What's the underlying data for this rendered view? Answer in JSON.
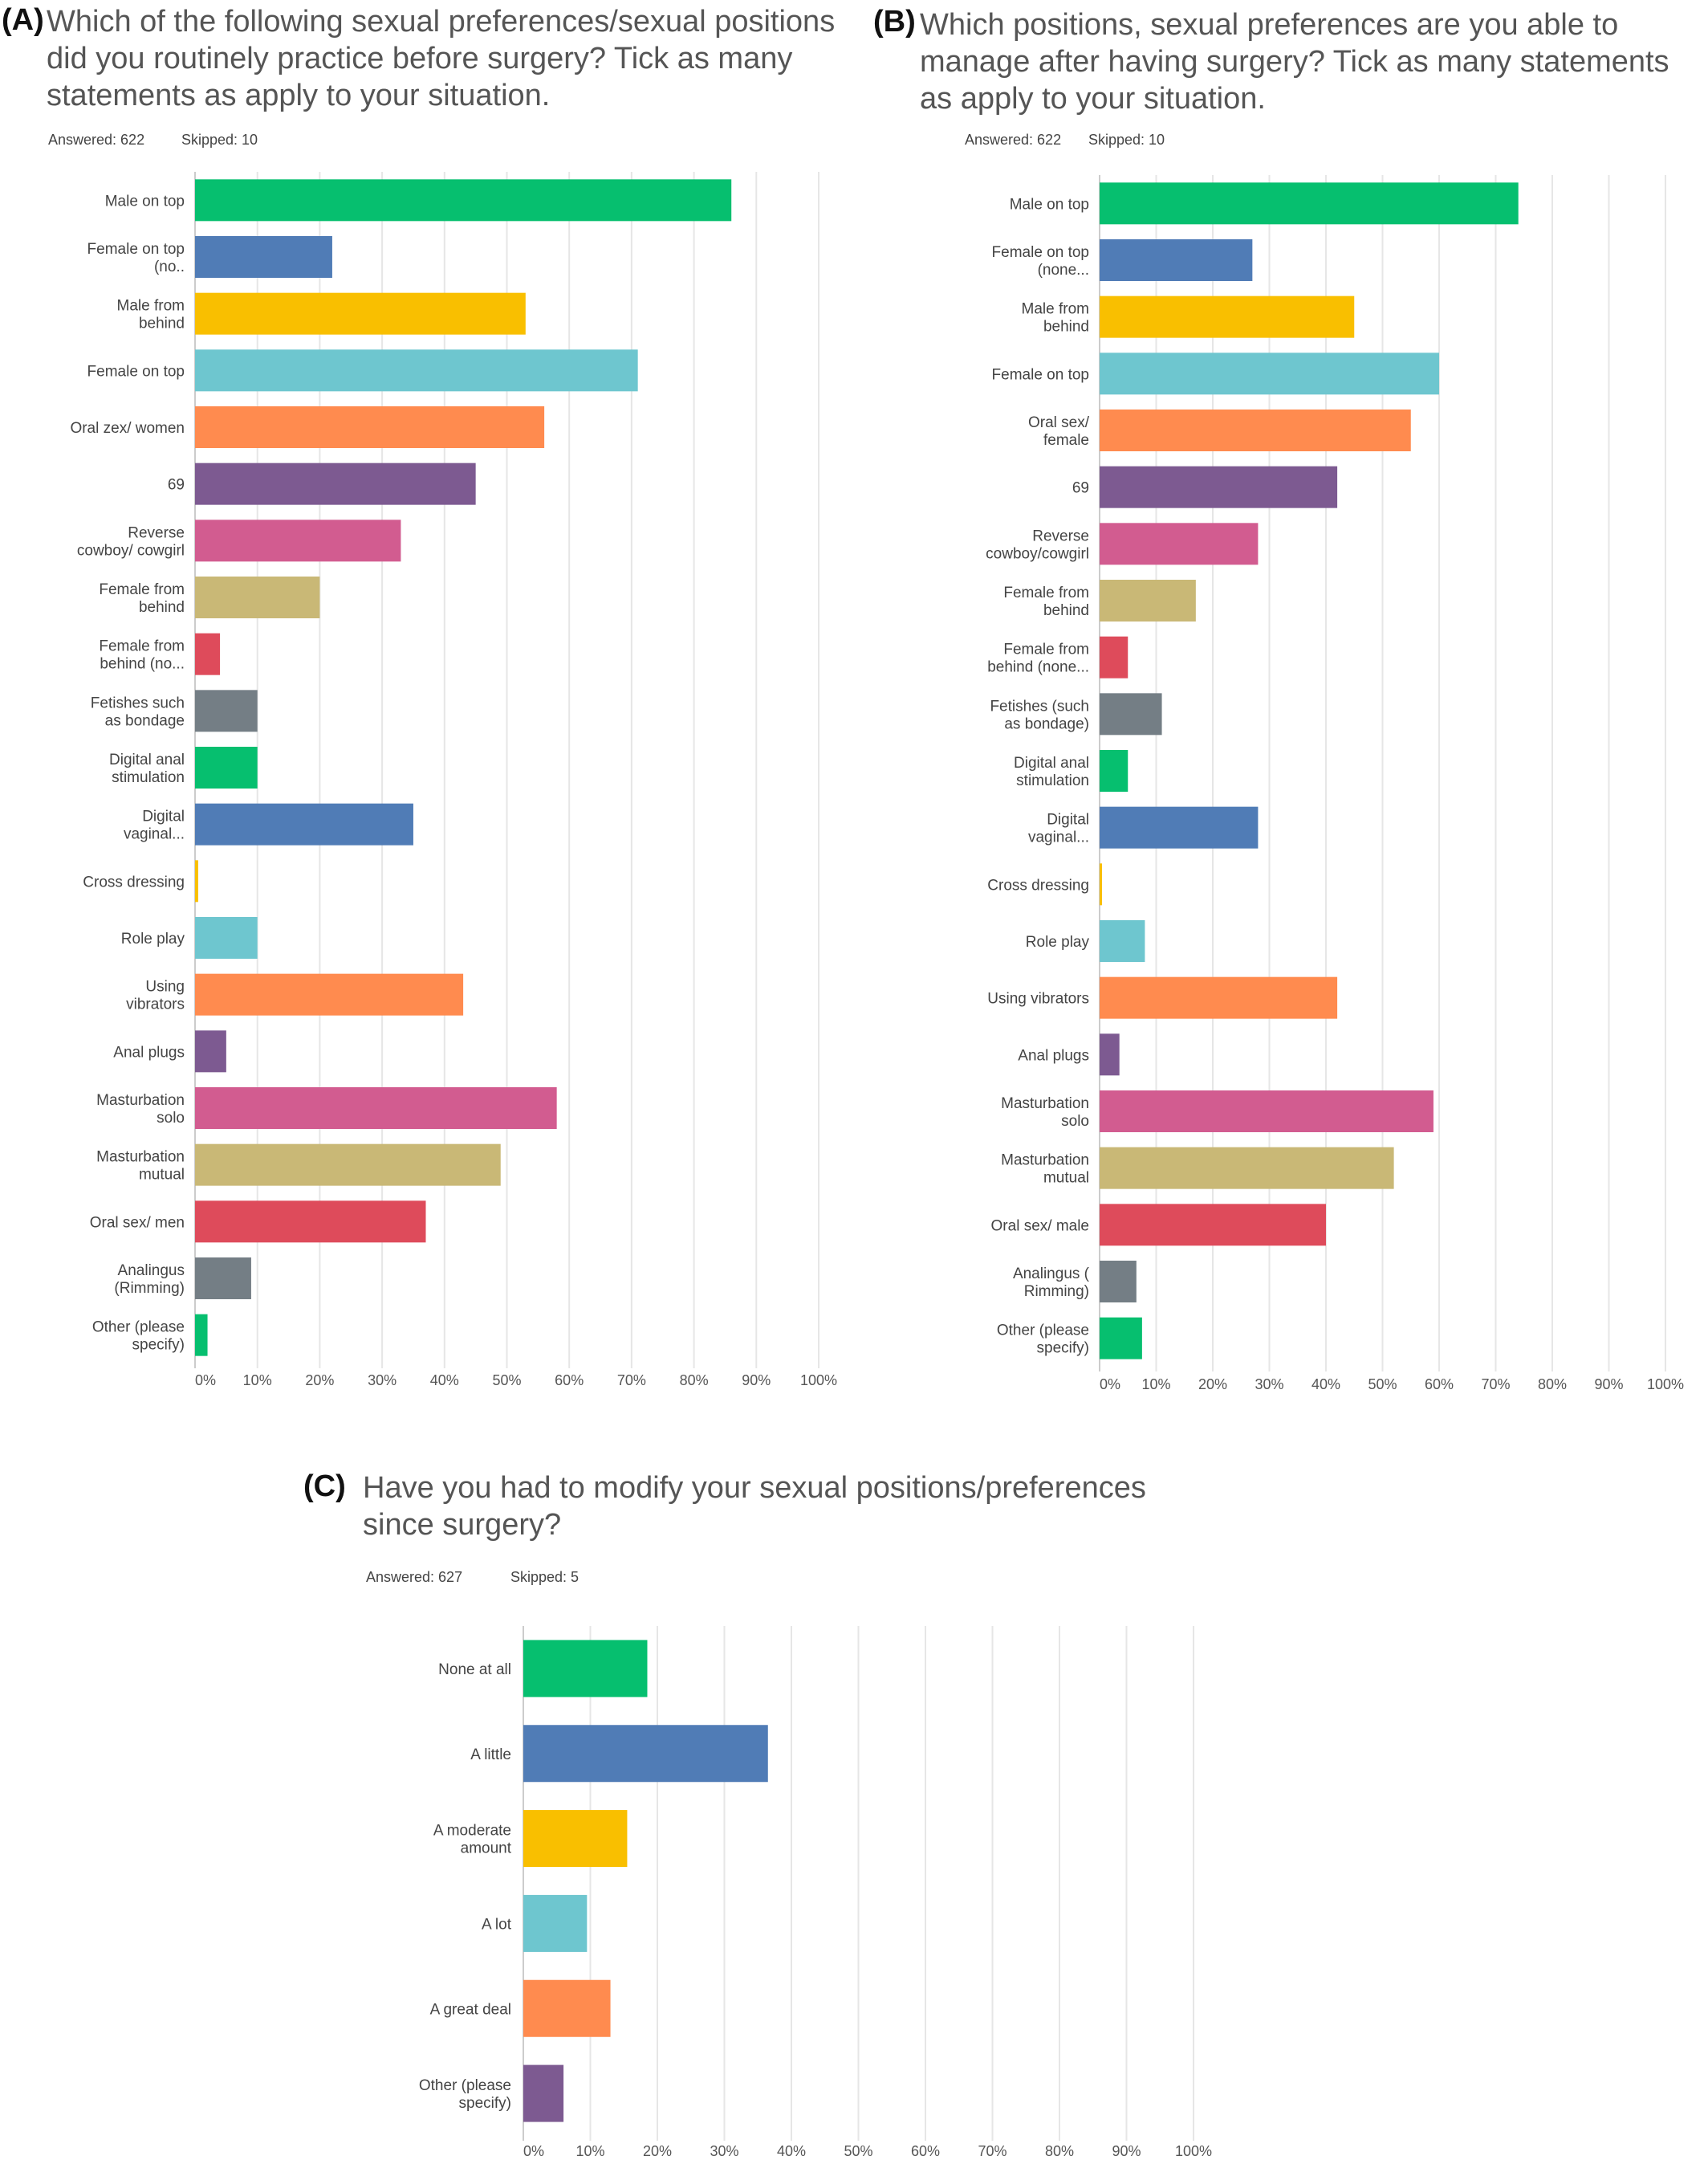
{
  "charts": {
    "A": {
      "panel_label": "(A)",
      "question": "Which of the following sexual preferences/sexual positions did you routinely practice before surgery? Tick as many statements as apply to your situation.",
      "answered": "Answered: 622",
      "skipped": "Skipped: 10"
    },
    "B": {
      "panel_label": "(B)",
      "question": "Which positions, sexual preferences are you able to manage after having surgery? Tick as many statements as apply to your situation.",
      "answered": "Answered: 622",
      "skipped": "Skipped: 10"
    },
    "C": {
      "panel_label": "(C)",
      "question": "Have you had to modify your sexual positions/preferences since surgery?",
      "answered": "Answered: 627",
      "skipped": "Skipped: 5"
    }
  },
  "chart_data": [
    {
      "id": "A",
      "type": "bar",
      "orientation": "horizontal",
      "categories": [
        [
          "Male on top"
        ],
        [
          "Female on top",
          "(no.."
        ],
        [
          "Male from",
          "behind"
        ],
        [
          "Female on top"
        ],
        [
          "Oral zex/ women"
        ],
        [
          "69"
        ],
        [
          "Reverse",
          "cowboy/ cowgirl"
        ],
        [
          "Female from",
          "behind"
        ],
        [
          "Female from",
          "behind (no..."
        ],
        [
          "Fetishes such",
          "as bondage"
        ],
        [
          "Digital anal",
          "stimulation"
        ],
        [
          "Digital",
          "vaginal..."
        ],
        [
          "Cross dressing"
        ],
        [
          "Role play"
        ],
        [
          "Using",
          "vibrators"
        ],
        [
          "Anal plugs"
        ],
        [
          "Masturbation",
          "solo"
        ],
        [
          "Masturbation",
          "mutual"
        ],
        [
          "Oral sex/ men"
        ],
        [
          "Analingus",
          "(Rimming)"
        ],
        [
          "Other (please",
          "specify)"
        ]
      ],
      "values": [
        86,
        22,
        53,
        71,
        56,
        45,
        33,
        20,
        4,
        10,
        10,
        35,
        0.5,
        10,
        43,
        5,
        58,
        49,
        37,
        9,
        2
      ],
      "xlim": [
        0,
        100
      ],
      "xticks": [
        "0%",
        "10%",
        "20%",
        "30%",
        "40%",
        "50%",
        "60%",
        "70%",
        "80%",
        "90%",
        "100%"
      ],
      "colors": [
        "#06bf6f",
        "#507cb6",
        "#f9bf00",
        "#6ec6cf",
        "#ff8b4f",
        "#7d5a91",
        "#d25c90",
        "#c9b876",
        "#de4b5b",
        "#747e85",
        "#06bf6f",
        "#507cb6",
        "#f9bf00",
        "#6ec6cf",
        "#ff8b4f",
        "#7d5a91",
        "#d25c90",
        "#c9b876",
        "#de4b5b",
        "#747e85",
        "#06bf6f"
      ],
      "grid": true
    },
    {
      "id": "B",
      "type": "bar",
      "orientation": "horizontal",
      "categories": [
        [
          "Male on top"
        ],
        [
          "Female on top",
          "(none..."
        ],
        [
          "Male from",
          "behind"
        ],
        [
          "Female on top"
        ],
        [
          "Oral sex/",
          "female"
        ],
        [
          "69"
        ],
        [
          "Reverse",
          "cowboy/cowgirl"
        ],
        [
          "Female from",
          "behind"
        ],
        [
          "Female from",
          "behind (none..."
        ],
        [
          "Fetishes (such",
          "as bondage)"
        ],
        [
          "Digital anal",
          "stimulation"
        ],
        [
          "Digital",
          "vaginal..."
        ],
        [
          "Cross dressing"
        ],
        [
          "Role play"
        ],
        [
          "Using vibrators"
        ],
        [
          "Anal plugs"
        ],
        [
          "Masturbation",
          "solo"
        ],
        [
          "Masturbation",
          "mutual"
        ],
        [
          "Oral sex/ male"
        ],
        [
          "Analingus (",
          "Rimming)"
        ],
        [
          "Other (please",
          "specify)"
        ]
      ],
      "values": [
        74,
        27,
        45,
        60,
        55,
        42,
        28,
        17,
        5,
        11,
        5,
        28,
        0.4,
        8,
        42,
        3.5,
        59,
        52,
        40,
        6.5,
        7.5
      ],
      "xlim": [
        0,
        100
      ],
      "xticks": [
        "0%",
        "10%",
        "20%",
        "30%",
        "40%",
        "50%",
        "60%",
        "70%",
        "80%",
        "90%",
        "100%"
      ],
      "colors": [
        "#06bf6f",
        "#507cb6",
        "#f9bf00",
        "#6ec6cf",
        "#ff8b4f",
        "#7d5a91",
        "#d25c90",
        "#c9b876",
        "#de4b5b",
        "#747e85",
        "#06bf6f",
        "#507cb6",
        "#f9bf00",
        "#6ec6cf",
        "#ff8b4f",
        "#7d5a91",
        "#d25c90",
        "#c9b876",
        "#de4b5b",
        "#747e85",
        "#06bf6f"
      ],
      "grid": true
    },
    {
      "id": "C",
      "type": "bar",
      "orientation": "horizontal",
      "categories": [
        [
          "None at all"
        ],
        [
          "A little"
        ],
        [
          "A moderate",
          "amount"
        ],
        [
          "A lot"
        ],
        [
          "A great deal"
        ],
        [
          "Other (please",
          "specify)"
        ]
      ],
      "values": [
        18.5,
        36.5,
        15.5,
        9.5,
        13,
        6
      ],
      "xlim": [
        0,
        100
      ],
      "xticks": [
        "0%",
        "10%",
        "20%",
        "30%",
        "40%",
        "50%",
        "60%",
        "70%",
        "80%",
        "90%",
        "100%"
      ],
      "colors": [
        "#06bf6f",
        "#507cb6",
        "#f9bf00",
        "#6ec6cf",
        "#ff8b4f",
        "#7d5a91"
      ],
      "grid": true
    }
  ]
}
